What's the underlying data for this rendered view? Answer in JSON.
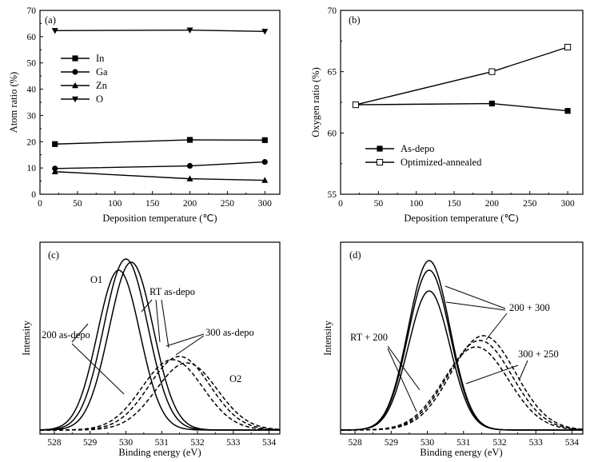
{
  "chart_data": [
    {
      "type": "line",
      "panel_label": "(a)",
      "xlabel": "Deposition temperature (℃)",
      "ylabel": "Atom ratio (%)",
      "xlim": [
        0,
        320
      ],
      "ylim": [
        0,
        70
      ],
      "xticks": [
        0,
        50,
        100,
        150,
        200,
        250,
        300
      ],
      "yticks": [
        0,
        10,
        20,
        30,
        40,
        50,
        60,
        70
      ],
      "legend_position": "middle-left",
      "x": [
        20,
        200,
        300
      ],
      "series": [
        {
          "name": "In",
          "marker": "square",
          "values": [
            19.1,
            20.7,
            20.6
          ]
        },
        {
          "name": "Ga",
          "marker": "circle",
          "values": [
            9.8,
            10.8,
            12.3
          ]
        },
        {
          "name": "Zn",
          "marker": "triangle-up",
          "values": [
            8.6,
            5.9,
            5.3
          ]
        },
        {
          "name": "O",
          "marker": "triangle-down",
          "values": [
            62.3,
            62.5,
            62.0
          ]
        }
      ]
    },
    {
      "type": "line",
      "panel_label": "(b)",
      "xlabel": "Deposition temperature (℃)",
      "ylabel": "Oxygen ratio (%)",
      "xlim": [
        0,
        320
      ],
      "ylim": [
        55,
        70
      ],
      "xticks": [
        0,
        50,
        100,
        150,
        200,
        250,
        300
      ],
      "yticks": [
        55,
        60,
        65,
        70
      ],
      "legend_position": "middle-left",
      "x": [
        20,
        200,
        300
      ],
      "series": [
        {
          "name": "As-depo",
          "marker": "square-filled",
          "values": [
            62.3,
            62.4,
            61.8
          ]
        },
        {
          "name": "Optimized-annealed",
          "marker": "square-open",
          "values": [
            62.3,
            65.0,
            67.0
          ]
        }
      ]
    },
    {
      "type": "line",
      "panel_label": "(c)",
      "xlabel": "Binding energy (eV)",
      "ylabel": "Intensity",
      "xlim": [
        527.6,
        534.3
      ],
      "xticks": [
        528,
        529,
        530,
        531,
        532,
        533,
        534
      ],
      "annotations": [
        "O1",
        "RT as-depo",
        "200 as-depo",
        "300 as-depo",
        "O2"
      ],
      "series": [
        {
          "style": "solid",
          "center": 529.8,
          "fwhm": 1.4,
          "height": 1.0
        },
        {
          "style": "solid",
          "center": 530.0,
          "fwhm": 1.45,
          "height": 1.07
        },
        {
          "style": "solid",
          "center": 530.15,
          "fwhm": 1.45,
          "height": 1.05
        },
        {
          "style": "dashed",
          "center": 531.3,
          "fwhm": 2.0,
          "height": 0.44
        },
        {
          "style": "dashed",
          "center": 531.5,
          "fwhm": 2.0,
          "height": 0.46
        },
        {
          "style": "dashed",
          "center": 531.7,
          "fwhm": 2.0,
          "height": 0.42
        }
      ]
    },
    {
      "type": "line",
      "panel_label": "(d)",
      "xlabel": "Binding energy (eV)",
      "ylabel": "Intensity",
      "xlim": [
        527.6,
        534.3
      ],
      "xticks": [
        528,
        529,
        530,
        531,
        532,
        533,
        534
      ],
      "annotations": [
        "200 + 300",
        "RT + 200",
        "300 + 250"
      ],
      "series": [
        {
          "style": "solid",
          "center": 530.05,
          "fwhm": 1.35,
          "height": 0.87
        },
        {
          "style": "solid",
          "center": 530.05,
          "fwhm": 1.35,
          "height": 1.0
        },
        {
          "style": "solid",
          "center": 530.05,
          "fwhm": 1.35,
          "height": 1.06
        },
        {
          "style": "dashed",
          "center": 531.35,
          "fwhm": 2.1,
          "height": 0.52
        },
        {
          "style": "dashed",
          "center": 531.45,
          "fwhm": 2.1,
          "height": 0.56
        },
        {
          "style": "dashed",
          "center": 531.55,
          "fwhm": 2.1,
          "height": 0.59
        }
      ]
    }
  ]
}
